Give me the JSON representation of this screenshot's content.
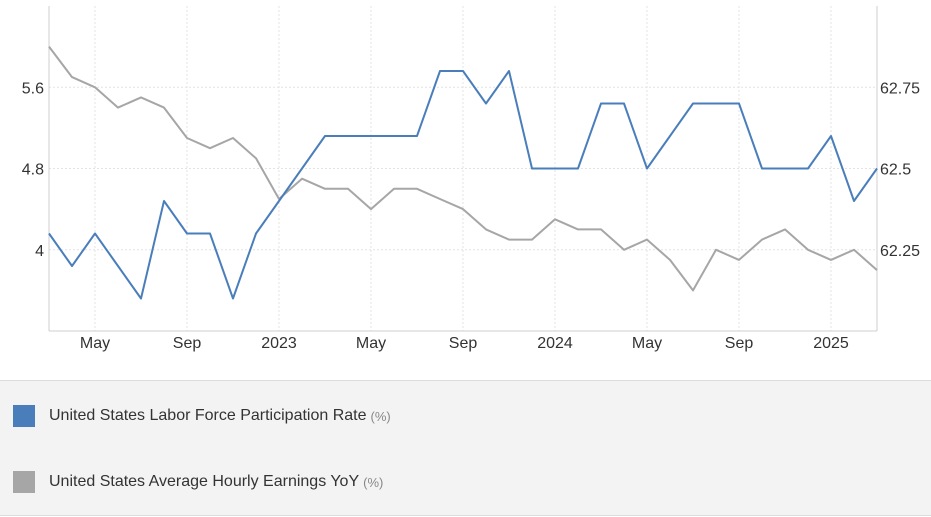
{
  "chart_data": {
    "type": "line",
    "x": [
      "2022-03",
      "2022-04",
      "2022-05",
      "2022-06",
      "2022-07",
      "2022-08",
      "2022-09",
      "2022-10",
      "2022-11",
      "2022-12",
      "2023-01",
      "2023-02",
      "2023-03",
      "2023-04",
      "2023-05",
      "2023-06",
      "2023-07",
      "2023-08",
      "2023-09",
      "2023-10",
      "2023-11",
      "2023-12",
      "2024-01",
      "2024-02",
      "2024-03",
      "2024-04",
      "2024-05",
      "2024-06",
      "2024-07",
      "2024-08",
      "2024-09",
      "2024-10",
      "2024-11",
      "2024-12",
      "2025-01",
      "2025-02",
      "2025-03"
    ],
    "x_tick_labels": [
      {
        "x": "2022-05",
        "label": "May"
      },
      {
        "x": "2022-09",
        "label": "Sep"
      },
      {
        "x": "2023-01",
        "label": "2023"
      },
      {
        "x": "2023-05",
        "label": "May"
      },
      {
        "x": "2023-09",
        "label": "Sep"
      },
      {
        "x": "2024-01",
        "label": "2024"
      },
      {
        "x": "2024-05",
        "label": "May"
      },
      {
        "x": "2024-09",
        "label": "Sep"
      },
      {
        "x": "2025-01",
        "label": "2025"
      }
    ],
    "series": [
      {
        "name": "United States Labor Force Participation Rate",
        "unit": "(%)",
        "axis": "right",
        "color": "#4a7ebb",
        "values": [
          62.3,
          62.2,
          62.3,
          62.2,
          62.1,
          62.4,
          62.3,
          62.3,
          62.1,
          62.3,
          62.4,
          62.5,
          62.6,
          62.6,
          62.6,
          62.6,
          62.6,
          62.8,
          62.8,
          62.7,
          62.8,
          62.5,
          62.5,
          62.5,
          62.7,
          62.7,
          62.5,
          62.6,
          62.7,
          62.7,
          62.7,
          62.5,
          62.5,
          62.5,
          62.6,
          62.4,
          62.5
        ]
      },
      {
        "name": "United States Average Hourly Earnings YoY",
        "unit": "(%)",
        "axis": "left",
        "color": "#a6a6a6",
        "values": [
          6.0,
          5.7,
          5.6,
          5.4,
          5.5,
          5.4,
          5.1,
          5.0,
          5.1,
          4.9,
          4.5,
          4.7,
          4.6,
          4.6,
          4.4,
          4.6,
          4.6,
          4.5,
          4.4,
          4.2,
          4.1,
          4.1,
          4.3,
          4.2,
          4.2,
          4.0,
          4.1,
          3.9,
          3.6,
          4.0,
          3.9,
          4.1,
          4.2,
          4.0,
          3.9,
          4.0,
          3.8
        ]
      }
    ],
    "y_left": {
      "ticks": [
        4,
        4.8,
        5.6
      ],
      "tick_labels": [
        "4",
        "4.8",
        "5.6"
      ],
      "range": [
        3.2,
        6.4
      ]
    },
    "y_right": {
      "ticks": [
        62.25,
        62.5,
        62.75
      ],
      "tick_labels": [
        "62.25",
        "62.5",
        "62.75"
      ],
      "range": [
        62.0,
        63.0
      ]
    },
    "grid": true,
    "legend_position": "bottom"
  },
  "legend": {
    "items": [
      {
        "name": "United States Labor Force Participation Rate",
        "unit": "(%)",
        "color": "#4a7ebb"
      },
      {
        "name": "United States Average Hourly Earnings YoY",
        "unit": "(%)",
        "color": "#a6a6a6"
      }
    ]
  }
}
